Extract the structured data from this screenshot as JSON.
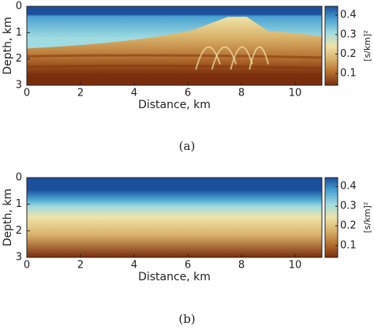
{
  "chart_data": [
    {
      "type": "heatmap",
      "caption": "(a)",
      "xlabel": "Distance, km",
      "ylabel": "Depth, km",
      "xlim": [
        0,
        11
      ],
      "xticks": [
        0,
        2,
        4,
        6,
        8,
        10
      ],
      "ylim": [
        0,
        3
      ],
      "yticks": [
        0,
        1,
        2,
        3
      ],
      "y_reversed": true,
      "colorbar_label": "[s/km]²",
      "clim": [
        0.04,
        0.445
      ],
      "colorbar_ticks": [
        0.1,
        0.2,
        0.3,
        0.4
      ],
      "colormap": [
        "#7a2e0c",
        "#b5702f",
        "#d9b26a",
        "#efe3a8",
        "#9fdbe0",
        "#4aa3d1",
        "#1c4f9c"
      ]
    },
    {
      "type": "heatmap",
      "caption": "(b)",
      "xlabel": "Distance, km",
      "ylabel": "Depth, km",
      "xlim": [
        0,
        11
      ],
      "xticks": [
        0,
        2,
        4,
        6,
        8,
        10
      ],
      "ylim": [
        0,
        3
      ],
      "yticks": [
        0,
        1,
        2,
        3
      ],
      "y_reversed": true,
      "colorbar_label": "[s/km]²",
      "clim": [
        0.04,
        0.445
      ],
      "colorbar_ticks": [
        0.1,
        0.2,
        0.3,
        0.4
      ],
      "colormap": [
        "#7a2e0c",
        "#b5702f",
        "#d9b26a",
        "#efe3a8",
        "#9fdbe0",
        "#4aa3d1",
        "#1c4f9c"
      ]
    }
  ]
}
